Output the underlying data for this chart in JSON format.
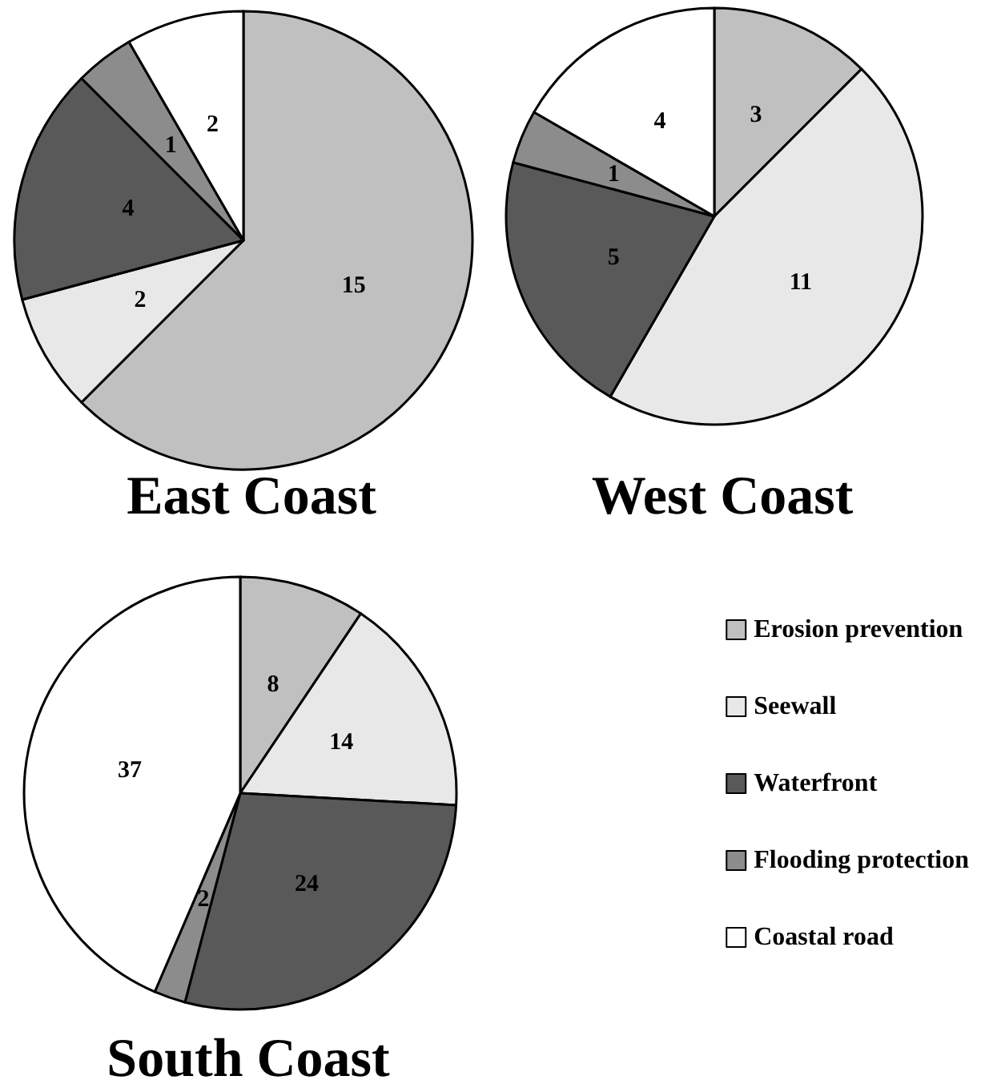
{
  "chart_data": [
    {
      "type": "pie",
      "title": "East Coast",
      "categories": [
        null,
        null,
        null,
        null,
        null
      ],
      "values": [
        15,
        2,
        4,
        1,
        2
      ],
      "colors": [
        "#c0c0c0",
        "#e8e8e8",
        "#595959",
        "#8c8c8c",
        "#ffffff"
      ],
      "data_labels": true
    },
    {
      "type": "pie",
      "title": "West Coast",
      "categories": [
        null,
        null,
        null,
        null,
        null
      ],
      "values": [
        3,
        11,
        5,
        1,
        4
      ],
      "colors": [
        "#c0c0c0",
        "#e8e8e8",
        "#595959",
        "#8c8c8c",
        "#ffffff"
      ],
      "data_labels": true
    },
    {
      "type": "pie",
      "title": "South Coast",
      "categories": [
        "Erosion prevention",
        "Seewall",
        "Waterfront",
        "Flooding protection",
        "Coastal road"
      ],
      "values": [
        8,
        14,
        24,
        2,
        37
      ],
      "colors": [
        "#c0c0c0",
        "#e8e8e8",
        "#595959",
        "#8c8c8c",
        "#ffffff"
      ],
      "data_labels": true,
      "legend": "right"
    }
  ]
}
